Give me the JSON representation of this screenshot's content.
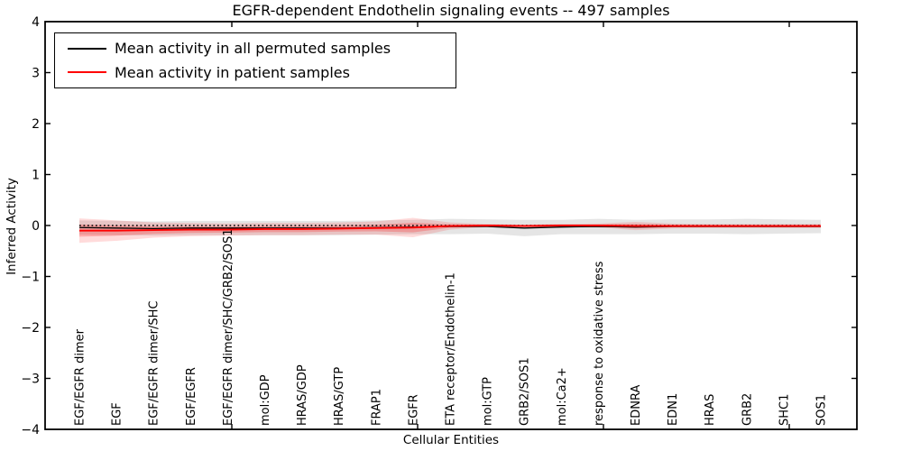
{
  "figure": {
    "title": "EGFR-dependent Endothelin signaling events -- 497 samples",
    "xlabel": "Cellular Entities",
    "ylabel": "Inferred Activity"
  },
  "legend": {
    "items": [
      {
        "label": "Mean activity in all permuted samples",
        "color": "#000000"
      },
      {
        "label": "Mean activity in patient samples",
        "color": "#ff0000"
      }
    ]
  },
  "chart_data": {
    "type": "line",
    "title": "EGFR-dependent Endothelin signaling events -- 497 samples",
    "xlabel": "Cellular Entities",
    "ylabel": "Inferred Activity",
    "ylim": [
      -4,
      4
    ],
    "yticks": [
      4,
      3,
      2,
      1,
      0,
      -1,
      -2,
      -3,
      -4
    ],
    "grid": false,
    "legend_position": "upper left",
    "categories": [
      "EGF/EGFR dimer",
      "EGF",
      "EGF/EGFR dimer/SHC",
      "EGF/EGFR",
      "EGF/EGFR dimer/SHC/GRB2/SOS1",
      "mol:GDP",
      "HRAS/GDP",
      "HRAS/GTP",
      "FRAP1",
      "EGFR",
      "ETA receptor/Endothelin-1",
      "mol:GTP",
      "GRB2/SOS1",
      "mol:Ca2+",
      "response to oxidative stress",
      "EDNRA",
      "EDN1",
      "HRAS",
      "GRB2",
      "SHC1",
      "SOS1"
    ],
    "series": [
      {
        "name": "Mean activity in all permuted samples",
        "color": "#000000",
        "style": "solid",
        "line_width": 1.3,
        "mean": [
          -0.04,
          -0.05,
          -0.06,
          -0.05,
          -0.05,
          -0.05,
          -0.05,
          -0.05,
          -0.04,
          -0.03,
          -0.02,
          -0.02,
          -0.05,
          -0.03,
          -0.02,
          -0.03,
          -0.02,
          -0.02,
          -0.02,
          -0.02,
          -0.02
        ],
        "std": [
          0.14,
          0.14,
          0.14,
          0.14,
          0.14,
          0.14,
          0.14,
          0.14,
          0.14,
          0.14,
          0.15,
          0.14,
          0.16,
          0.14,
          0.15,
          0.14,
          0.14,
          0.14,
          0.15,
          0.14,
          0.13
        ],
        "bands": [
          {
            "mult": 1.0,
            "color": "rgba(0,0,0,0.10)"
          }
        ]
      },
      {
        "name": "Mean activity in patient samples",
        "color": "#ff0000",
        "style": "solid",
        "line_width": 1.9,
        "mean": [
          -0.1,
          -0.1,
          -0.09,
          -0.08,
          -0.08,
          -0.07,
          -0.07,
          -0.06,
          -0.05,
          -0.04,
          -0.01,
          0.0,
          -0.01,
          0.0,
          0.0,
          -0.01,
          -0.01,
          -0.01,
          -0.01,
          -0.01,
          -0.01
        ],
        "std": [
          0.24,
          0.2,
          0.15,
          0.13,
          0.12,
          0.12,
          0.12,
          0.12,
          0.13,
          0.19,
          0.07,
          0.03,
          0.03,
          0.03,
          0.04,
          0.08,
          0.05,
          0.04,
          0.04,
          0.04,
          0.04
        ],
        "bands": [
          {
            "mult": 1.0,
            "color": "rgba(255,0,0,0.14)"
          },
          {
            "mult": 0.5,
            "color": "rgba(255,0,0,0.22)"
          }
        ]
      },
      {
        "name": "zero baseline",
        "color": "#000000",
        "style": "dotted",
        "line_width": 1.5,
        "mean": [
          0,
          0,
          0,
          0,
          0,
          0,
          0,
          0,
          0,
          0,
          0,
          0,
          0,
          0,
          0,
          0,
          0,
          0,
          0,
          0,
          0
        ],
        "std": [
          0,
          0,
          0,
          0,
          0,
          0,
          0,
          0,
          0,
          0,
          0,
          0,
          0,
          0,
          0,
          0,
          0,
          0,
          0,
          0,
          0
        ],
        "bands": []
      }
    ]
  }
}
